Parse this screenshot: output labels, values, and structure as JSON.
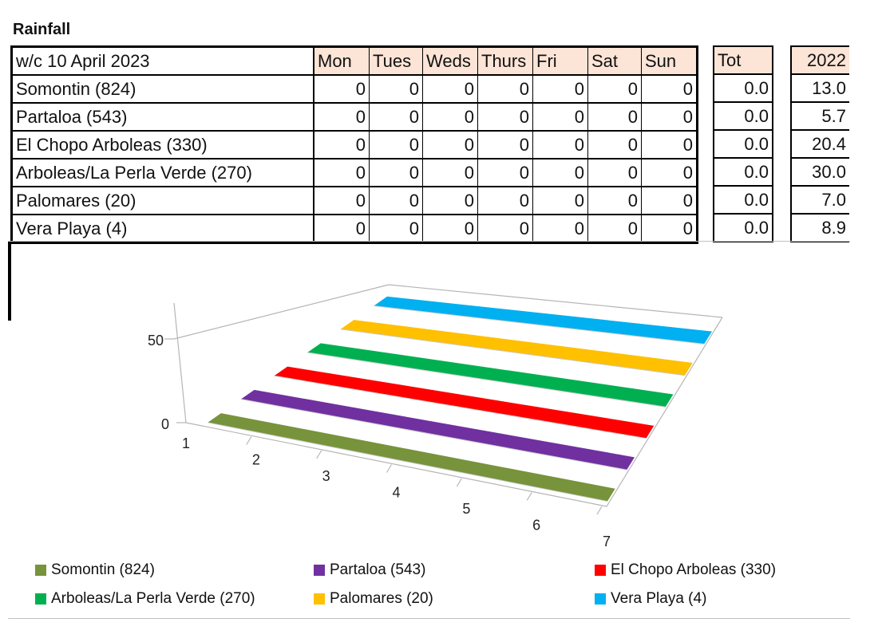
{
  "title": "Rainfall",
  "table": {
    "header": {
      "week": "w/c 10 April 2023",
      "days": [
        "Mon",
        "Tues",
        "Weds",
        "Thurs",
        "Fri",
        "Sat",
        "Sun"
      ],
      "total": "Tot",
      "prev_year": "2022"
    },
    "rows": [
      {
        "name": "Somontin (824)",
        "days": [
          "0",
          "0",
          "0",
          "0",
          "0",
          "0",
          "0"
        ],
        "total": "0.0",
        "prev": "13.0"
      },
      {
        "name": "Partaloa (543)",
        "days": [
          "0",
          "0",
          "0",
          "0",
          "0",
          "0",
          "0"
        ],
        "total": "0.0",
        "prev": "5.7"
      },
      {
        "name": "El Chopo Arboleas (330)",
        "days": [
          "0",
          "0",
          "0",
          "0",
          "0",
          "0",
          "0"
        ],
        "total": "0.0",
        "prev": "20.4"
      },
      {
        "name": "Arboleas/La Perla Verde (270)",
        "days": [
          "0",
          "0",
          "0",
          "0",
          "0",
          "0",
          "0"
        ],
        "total": "0.0",
        "prev": "30.0"
      },
      {
        "name": "Palomares (20)",
        "days": [
          "0",
          "0",
          "0",
          "0",
          "0",
          "0",
          "0"
        ],
        "total": "0.0",
        "prev": "7.0"
      },
      {
        "name": "Vera Playa (4)",
        "days": [
          "0",
          "0",
          "0",
          "0",
          "0",
          "0",
          "0"
        ],
        "total": "0.0",
        "prev": "8.9"
      }
    ]
  },
  "chart_data": {
    "type": "bar",
    "style": "3d",
    "categories": [
      "1",
      "2",
      "3",
      "4",
      "5",
      "6",
      "7"
    ],
    "y_ticks": [
      "0",
      "50"
    ],
    "ylim": [
      0,
      50
    ],
    "legend_position": "bottom",
    "series": [
      {
        "name": "Somontin (824)",
        "values": [
          0,
          0,
          0,
          0,
          0,
          0,
          0
        ],
        "color": "#77933c"
      },
      {
        "name": "Partaloa (543)",
        "values": [
          0,
          0,
          0,
          0,
          0,
          0,
          0
        ],
        "color": "#7030a0"
      },
      {
        "name": "El Chopo Arboleas (330)",
        "values": [
          0,
          0,
          0,
          0,
          0,
          0,
          0
        ],
        "color": "#ff0000"
      },
      {
        "name": "Arboleas/La Perla Verde (270)",
        "values": [
          0,
          0,
          0,
          0,
          0,
          0,
          0
        ],
        "color": "#00b050"
      },
      {
        "name": "Palomares (20)",
        "values": [
          0,
          0,
          0,
          0,
          0,
          0,
          0
        ],
        "color": "#ffc000"
      },
      {
        "name": "Vera Playa (4)",
        "values": [
          0,
          0,
          0,
          0,
          0,
          0,
          0
        ],
        "color": "#00b0f0"
      }
    ]
  }
}
